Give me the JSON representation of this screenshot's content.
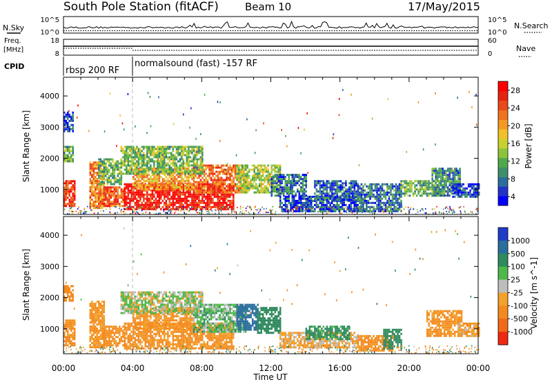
{
  "header": {
    "station": "South Pole Station (fitACF)",
    "beam": "Beam 10",
    "date": "17/May/2015"
  },
  "chart_data": [
    {
      "type": "line",
      "name": "noise-panel",
      "left_label_top": "N.Sky",
      "right_label_top": "N.Search",
      "left_ticks": [
        "10^5",
        "10^0"
      ],
      "right_ticks": [
        "10^5",
        "10^0"
      ],
      "series": [
        {
          "name": "N.Sky",
          "style": "solid"
        },
        {
          "name": "N.Search",
          "style": "dotted"
        }
      ]
    },
    {
      "type": "line",
      "name": "freq-nave-panel",
      "left_label": [
        "Freq.",
        "[MHz]"
      ],
      "right_label": "Nave",
      "left_ticks": [
        "18",
        "8"
      ],
      "right_ticks": [
        "60",
        "0"
      ],
      "freq_mhz": 10.5,
      "nave": 30
    },
    {
      "type": "table",
      "name": "cpid-panel",
      "label": "CPID",
      "segments": [
        {
          "start": "00:00",
          "end": "04:00",
          "text": "rbsp 200 RF"
        },
        {
          "start": "04:00",
          "end": "24:00",
          "text": "normalsound (fast) -157 RF"
        }
      ]
    },
    {
      "type": "heatmap",
      "name": "power-panel",
      "ylabel": "Slant Range [km]",
      "yticks": [
        1000,
        2000,
        3000,
        4000
      ],
      "ylim": [
        200,
        4600
      ],
      "colorbar_label": "Power [dB]",
      "colorbar_ticks": [
        4,
        8,
        12,
        16,
        20,
        24,
        28
      ],
      "colorbar_colors": [
        "#0000ff",
        "#2233c8",
        "#2a6e9e",
        "#3f8f6a",
        "#4fa84a",
        "#8cc43c",
        "#c9d12f",
        "#f2c12a",
        "#f49a23",
        "#f0731e",
        "#ea4a1a",
        "#e62212",
        "#ff0000"
      ],
      "regions": [
        {
          "t0": 0.0,
          "t1": 0.6,
          "r0": 500,
          "r1": 1300,
          "v": 26
        },
        {
          "t0": 0.0,
          "t1": 0.5,
          "r0": 1900,
          "r1": 2400,
          "v": 12
        },
        {
          "t0": 0.0,
          "t1": 0.5,
          "r0": 2900,
          "r1": 3500,
          "v": 6
        },
        {
          "t0": 1.5,
          "t1": 2.3,
          "r0": 400,
          "r1": 1900,
          "v": 22
        },
        {
          "t0": 2.3,
          "t1": 3.5,
          "r0": 500,
          "r1": 1100,
          "v": 24
        },
        {
          "t0": 2.0,
          "t1": 3.3,
          "r0": 1200,
          "r1": 2000,
          "v": 12
        },
        {
          "t0": 3.5,
          "t1": 9.8,
          "r0": 400,
          "r1": 1200,
          "v": 28
        },
        {
          "t0": 4.0,
          "t1": 7.5,
          "r0": 1000,
          "r1": 1700,
          "v": 20
        },
        {
          "t0": 7.5,
          "t1": 10.5,
          "r0": 900,
          "r1": 1800,
          "v": 23
        },
        {
          "t0": 3.3,
          "t1": 8.0,
          "r0": 1500,
          "r1": 2400,
          "v": 13
        },
        {
          "t0": 10.0,
          "t1": 12.5,
          "r0": 900,
          "r1": 1800,
          "v": 15
        },
        {
          "t0": 12.0,
          "t1": 14.0,
          "r0": 800,
          "r1": 1500,
          "v": 8
        },
        {
          "t0": 12.5,
          "t1": 17.5,
          "r0": 300,
          "r1": 800,
          "v": 6
        },
        {
          "t0": 14.5,
          "t1": 17.0,
          "r0": 700,
          "r1": 1300,
          "v": 7
        },
        {
          "t0": 17.0,
          "t1": 19.5,
          "r0": 300,
          "r1": 1200,
          "v": 8
        },
        {
          "t0": 19.5,
          "t1": 22.0,
          "r0": 800,
          "r1": 1300,
          "v": 12
        },
        {
          "t0": 21.3,
          "t1": 22.9,
          "r0": 800,
          "r1": 1700,
          "v": 9
        },
        {
          "t0": 22.5,
          "t1": 24.0,
          "r0": 800,
          "r1": 1200,
          "v": 5
        }
      ]
    },
    {
      "type": "heatmap",
      "name": "velocity-panel",
      "ylabel": "Slant Range [km]",
      "yticks": [
        1000,
        2000,
        3000,
        4000
      ],
      "ylim": [
        200,
        4600
      ],
      "colorbar_label": "Velocity [m s^-1]",
      "colorbar_ticks": [
        "1000",
        "500",
        "100",
        "25",
        "-25",
        "-100",
        "-500",
        "-1000"
      ],
      "colorbar_colors": [
        "#1e3cc8",
        "#2a6e9e",
        "#2f8a5e",
        "#4fb84a",
        "#bdbdbd",
        "#f2a12a",
        "#f48a1e",
        "#f26a18",
        "#ee2a12"
      ],
      "regions": [
        {
          "t0": 0.0,
          "t1": 0.6,
          "r0": 500,
          "r1": 1300,
          "v": -150
        },
        {
          "t0": 0.0,
          "t1": 0.5,
          "r0": 1900,
          "r1": 2400,
          "v": -200
        },
        {
          "t0": 1.5,
          "t1": 2.3,
          "r0": 400,
          "r1": 1900,
          "v": -120
        },
        {
          "t0": 2.3,
          "t1": 3.5,
          "r0": 500,
          "r1": 1100,
          "v": -150
        },
        {
          "t0": 3.5,
          "t1": 9.8,
          "r0": 400,
          "r1": 1200,
          "v": -140
        },
        {
          "t0": 4.0,
          "t1": 7.5,
          "r0": 1000,
          "r1": 1700,
          "v": -130
        },
        {
          "t0": 7.5,
          "t1": 10.5,
          "r0": 900,
          "r1": 1800,
          "v": 60
        },
        {
          "t0": 3.3,
          "t1": 8.0,
          "r0": 1500,
          "r1": 2200,
          "v": 20
        },
        {
          "t0": 10.0,
          "t1": 11.2,
          "r0": 1000,
          "r1": 1800,
          "v": 800
        },
        {
          "t0": 11.2,
          "t1": 12.5,
          "r0": 900,
          "r1": 1700,
          "v": 300
        },
        {
          "t0": 12.5,
          "t1": 17.0,
          "r0": 400,
          "r1": 900,
          "v": -60
        },
        {
          "t0": 14.0,
          "t1": 16.5,
          "r0": 700,
          "r1": 1100,
          "v": 150
        },
        {
          "t0": 17.0,
          "t1": 19.0,
          "r0": 300,
          "r1": 800,
          "v": -150
        },
        {
          "t0": 18.5,
          "t1": 19.5,
          "r0": 400,
          "r1": 1000,
          "v": 200
        },
        {
          "t0": 21.0,
          "t1": 23.0,
          "r0": 800,
          "r1": 1600,
          "v": -140
        },
        {
          "t0": 22.8,
          "t1": 24.0,
          "r0": 800,
          "r1": 1200,
          "v": -80
        }
      ]
    }
  ],
  "xaxis": {
    "label": "Time UT",
    "ticks": [
      "00:00",
      "04:00",
      "08:00",
      "12:00",
      "16:00",
      "20:00",
      "00:00"
    ],
    "range_hours": [
      0,
      24
    ]
  }
}
